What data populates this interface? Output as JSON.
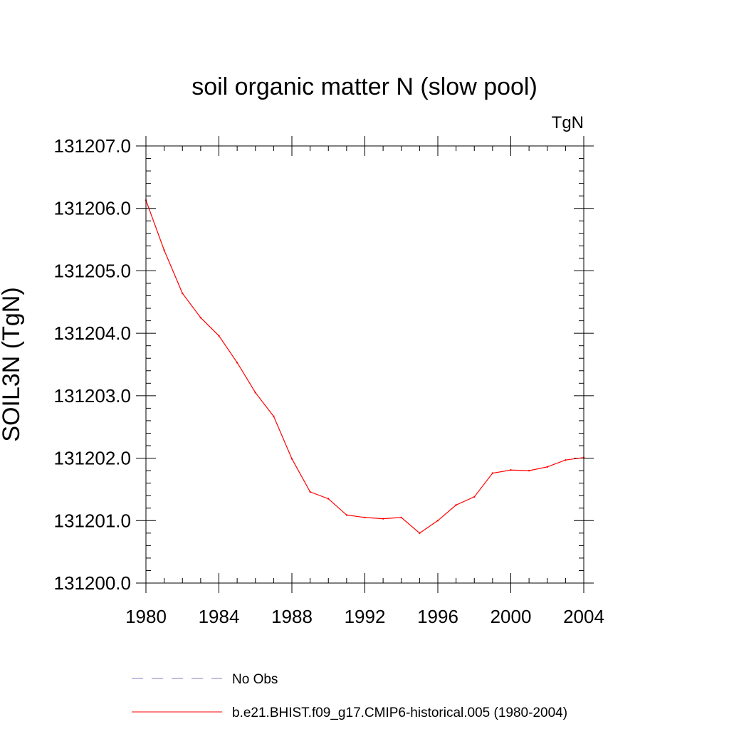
{
  "chart_data": {
    "type": "line",
    "title": "soil organic matter N (slow pool)",
    "units_label": "TgN",
    "xlabel": "",
    "ylabel": "SOIL3N  (TgN)",
    "xlim": [
      1980,
      2004
    ],
    "ylim": [
      131200.0,
      131207.0
    ],
    "x_ticks": [
      1980,
      1984,
      1988,
      1992,
      1996,
      2000,
      2004
    ],
    "x_tick_labels": [
      "1980",
      "1984",
      "1988",
      "1992",
      "1996",
      "2000",
      "2004"
    ],
    "y_ticks": [
      131200.0,
      131201.0,
      131202.0,
      131203.0,
      131204.0,
      131205.0,
      131206.0,
      131207.0
    ],
    "y_tick_labels": [
      "131200.0",
      "131201.0",
      "131202.0",
      "131203.0",
      "131204.0",
      "131205.0",
      "131206.0",
      "131207.0"
    ],
    "grid": false,
    "legend_position": "bottom",
    "series": [
      {
        "name": "No Obs",
        "color": "#8080c0",
        "style": "dashed",
        "x": [],
        "y": []
      },
      {
        "name": "b.e21.BHIST.f09_g17.CMIP6-historical.005 (1980-2004)",
        "color": "#ff0000",
        "style": "solid",
        "x": [
          1980,
          1981,
          1982,
          1983,
          1984,
          1985,
          1986,
          1987,
          1988,
          1989,
          1990,
          1991,
          1992,
          1993,
          1994,
          1995,
          1996,
          1997,
          1998,
          1999,
          2000,
          2001,
          2002,
          2003,
          2004
        ],
        "y": [
          131206.13,
          131205.33,
          131204.64,
          131204.25,
          131203.96,
          131203.53,
          131203.05,
          131202.67,
          131201.99,
          131201.46,
          131201.35,
          131201.09,
          131201.05,
          131201.03,
          131201.05,
          131200.8,
          131201.0,
          131201.25,
          131201.38,
          131201.76,
          131201.81,
          131201.8,
          131201.86,
          131201.97,
          131202.01
        ]
      }
    ]
  }
}
